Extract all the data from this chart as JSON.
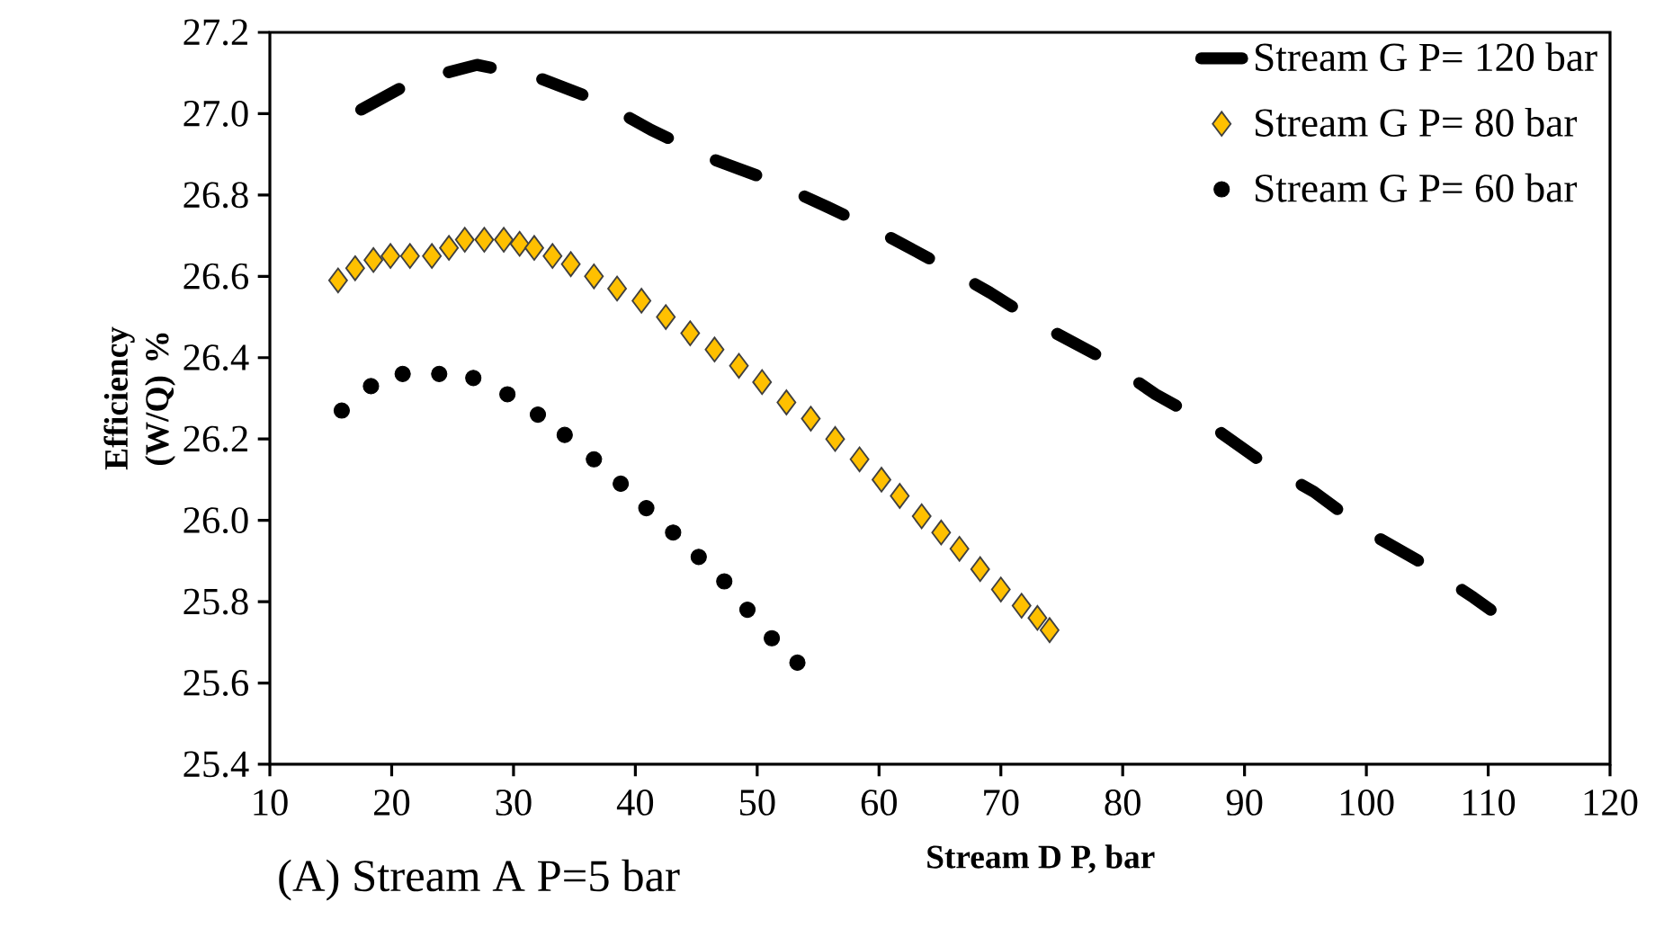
{
  "chart_data": {
    "type": "line",
    "xlabel": "Stream D P, bar",
    "ylabel": "Efficiency (W/Q) %",
    "annotations": [
      "(A) Stream A P=5 bar"
    ],
    "xlim": [
      10,
      120
    ],
    "xticks": [
      10,
      20,
      30,
      40,
      50,
      60,
      70,
      80,
      90,
      100,
      110,
      120
    ],
    "ylim": [
      25.4,
      27.2
    ],
    "yticks": [
      25.4,
      25.6,
      25.8,
      {
        "value": 26,
        "label": "26.0"
      },
      26.2,
      26.4,
      26.6,
      26.8,
      {
        "value": 27,
        "label": "27.0"
      },
      27.2
    ],
    "legend": "top right",
    "series": [
      {
        "name": "Stream G P= 120 bar",
        "line_style": "dashed",
        "color": "#000000",
        "x": [
          17.5,
          21.8,
          27.0,
          31.9,
          37.1,
          41.3,
          46.2,
          50.7,
          55.8,
          60.0,
          65.0,
          69.1,
          73.9,
          78.3,
          82.7,
          86.9,
          91.6,
          95.7,
          100.2,
          104.3,
          108.8,
          110.2
        ],
        "values": [
          27.01,
          27.08,
          27.12,
          27.09,
          27.03,
          26.96,
          26.89,
          26.84,
          26.77,
          26.71,
          26.63,
          26.56,
          26.47,
          26.4,
          26.31,
          26.24,
          26.14,
          26.07,
          25.97,
          25.9,
          25.81,
          25.78
        ]
      },
      {
        "name": "Stream G P= 80 bar",
        "type": "scatter",
        "marker": "diamond",
        "color": "#ffc000",
        "x": [
          15.6,
          17.0,
          18.5,
          19.9,
          21.5,
          23.3,
          24.7,
          26.0,
          27.6,
          29.2,
          30.5,
          31.7,
          33.2,
          34.7,
          36.6,
          38.5,
          40.5,
          42.5,
          44.5,
          46.5,
          48.5,
          50.4,
          52.4,
          54.4,
          56.4,
          58.4,
          60.2,
          61.7,
          63.5,
          65.1,
          66.6,
          68.3,
          70.0,
          71.7,
          73.0,
          74.0
        ],
        "values": [
          26.59,
          26.62,
          26.64,
          26.65,
          26.65,
          26.65,
          26.67,
          26.69,
          26.69,
          26.69,
          26.68,
          26.67,
          26.65,
          26.63,
          26.6,
          26.57,
          26.54,
          26.5,
          26.46,
          26.42,
          26.38,
          26.34,
          26.29,
          26.25,
          26.2,
          26.15,
          26.1,
          26.06,
          26.01,
          25.97,
          25.93,
          25.88,
          25.83,
          25.79,
          25.76,
          25.73
        ]
      },
      {
        "name": "Stream G P= 60 bar",
        "type": "scatter",
        "marker": "circle",
        "color": "#000000",
        "x": [
          15.9,
          18.3,
          20.9,
          23.9,
          26.7,
          29.5,
          32.0,
          34.2,
          36.6,
          38.8,
          40.9,
          43.1,
          45.2,
          47.3,
          49.2,
          51.2,
          53.3
        ],
        "values": [
          26.27,
          26.33,
          26.36,
          26.36,
          26.35,
          26.31,
          26.26,
          26.21,
          26.15,
          26.09,
          26.03,
          25.97,
          25.91,
          25.85,
          25.78,
          25.71,
          25.65
        ]
      }
    ]
  }
}
